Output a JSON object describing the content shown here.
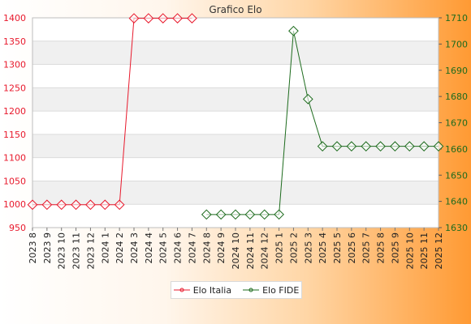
{
  "chart_data": {
    "type": "line",
    "title": "Grafico Elo",
    "categories": [
      "2023 8",
      "2023 9",
      "2023 10",
      "2023 11",
      "2023 12",
      "2024 1",
      "2024 2",
      "2024 3",
      "2024 4",
      "2024 5",
      "2024 6",
      "2024 7",
      "2024 8",
      "2024 9",
      "2024 10",
      "2024 11",
      "2024 12",
      "2025 1",
      "2025 2",
      "2025 3",
      "2025 4",
      "2025 5",
      "2025 6",
      "2025 7",
      "2025 8",
      "2025 9",
      "2025 10",
      "2025 11",
      "2025 12"
    ],
    "y_left": {
      "min": 950,
      "max": 1400,
      "ticks": [
        950,
        1000,
        1050,
        1100,
        1150,
        1200,
        1250,
        1300,
        1350,
        1400
      ]
    },
    "y_right": {
      "min": 1630,
      "max": 1710,
      "ticks": [
        1630,
        1640,
        1650,
        1660,
        1670,
        1680,
        1690,
        1700,
        1710
      ]
    },
    "series": [
      {
        "name": "Elo Italia",
        "axis": "left",
        "color": "#e8192c",
        "values": [
          999,
          999,
          999,
          999,
          999,
          999,
          999,
          1399,
          1399,
          1399,
          1399,
          1399,
          null,
          null,
          null,
          null,
          null,
          null,
          null,
          null,
          null,
          null,
          null,
          null,
          null,
          null,
          null,
          null,
          null
        ]
      },
      {
        "name": "Elo FIDE",
        "axis": "right",
        "color": "#1d6b1d",
        "values": [
          null,
          null,
          null,
          null,
          null,
          null,
          null,
          null,
          null,
          null,
          null,
          null,
          1635,
          1635,
          1635,
          1635,
          1635,
          1635,
          1705,
          1679,
          1661,
          1661,
          1661,
          1661,
          1661,
          1661,
          1661,
          1661,
          1661
        ]
      }
    ],
    "grid": true,
    "legend_position": "bottom"
  }
}
